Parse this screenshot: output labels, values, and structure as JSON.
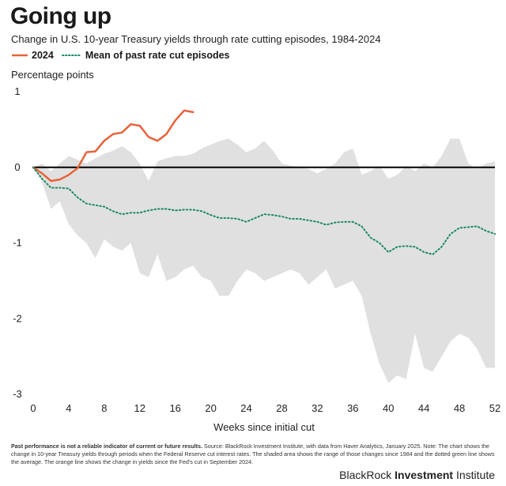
{
  "header": {
    "title": "Going up",
    "subtitle": "Change in U.S. 10-year Treasury yields through rate cutting episodes, 1984-2024"
  },
  "legend": {
    "series_2024": "2024",
    "series_mean": "Mean of past rate cut episodes"
  },
  "footer": {
    "disclaimer": "Past performance is not a reliable indicator of current or future results.",
    "source": "Source: BlackRock Investment Institute, with data from Haver Analytics, January 2025. Note: The chart shows the change in 10-year Treasury yields through periods when the Federal Reserve cut interest rates. The shaded area shows the range of those changes since 1984 and the dotted green line shows the average. The orange line shows the change in yields since the Fed's cut in September 2024.",
    "brand_prefix": "BlackRock",
    "brand_bold": "Investment",
    "brand_suffix": "Institute"
  },
  "colors": {
    "line_2024": "#e8623a",
    "mean": "#1a8a6a",
    "range": "#e0e0e0",
    "zero": "#000000"
  },
  "chart_data": {
    "type": "line",
    "title": "Going up",
    "ylabel": "Percentage points",
    "xlabel": "Weeks since initial cut",
    "xlim": [
      0,
      52
    ],
    "ylim": [
      -3,
      1
    ],
    "xticks": [
      0,
      4,
      8,
      12,
      16,
      20,
      24,
      28,
      32,
      36,
      40,
      44,
      48,
      52
    ],
    "yticks": [
      1,
      0,
      -1,
      -2,
      -3
    ],
    "series": [
      {
        "name": "2024",
        "x": [
          0,
          1,
          2,
          3,
          4,
          5,
          6,
          7,
          8,
          9,
          10,
          11,
          12,
          13,
          14,
          15,
          16,
          17,
          18
        ],
        "values": [
          0,
          -0.08,
          -0.18,
          -0.16,
          -0.1,
          -0.01,
          0.2,
          0.21,
          0.35,
          0.44,
          0.46,
          0.57,
          0.55,
          0.4,
          0.35,
          0.44,
          0.62,
          0.75,
          0.73
        ]
      },
      {
        "name": "Mean of past rate cut episodes",
        "x": [
          0,
          1,
          2,
          3,
          4,
          5,
          6,
          7,
          8,
          9,
          10,
          11,
          12,
          13,
          14,
          15,
          16,
          17,
          18,
          19,
          20,
          21,
          22,
          23,
          24,
          25,
          26,
          27,
          28,
          29,
          30,
          31,
          32,
          33,
          34,
          35,
          36,
          37,
          38,
          39,
          40,
          41,
          42,
          43,
          44,
          45,
          46,
          47,
          48,
          49,
          50,
          51,
          52
        ],
        "values": [
          0,
          -0.15,
          -0.27,
          -0.27,
          -0.28,
          -0.4,
          -0.48,
          -0.5,
          -0.52,
          -0.58,
          -0.62,
          -0.6,
          -0.6,
          -0.57,
          -0.55,
          -0.55,
          -0.57,
          -0.56,
          -0.56,
          -0.58,
          -0.63,
          -0.67,
          -0.67,
          -0.68,
          -0.72,
          -0.67,
          -0.62,
          -0.63,
          -0.65,
          -0.68,
          -0.68,
          -0.7,
          -0.72,
          -0.76,
          -0.73,
          -0.72,
          -0.72,
          -0.78,
          -0.93,
          -1.0,
          -1.12,
          -1.05,
          -1.04,
          -1.05,
          -1.12,
          -1.15,
          -1.05,
          -0.88,
          -0.8,
          -0.79,
          -0.78,
          -0.84,
          -0.88
        ]
      }
    ],
    "range": {
      "name": "Range of past episodes",
      "x": [
        0,
        1,
        2,
        3,
        4,
        5,
        6,
        7,
        8,
        9,
        10,
        11,
        12,
        13,
        14,
        15,
        16,
        17,
        18,
        19,
        20,
        21,
        22,
        23,
        24,
        25,
        26,
        27,
        28,
        29,
        30,
        31,
        32,
        33,
        34,
        35,
        36,
        37,
        38,
        39,
        40,
        41,
        42,
        43,
        44,
        45,
        46,
        47,
        48,
        49,
        50,
        51,
        52
      ],
      "upper": [
        0,
        0.05,
        -0.05,
        0.05,
        0.15,
        0.1,
        0.05,
        0.12,
        0.18,
        0.22,
        0.28,
        0.2,
        0.05,
        -0.18,
        0.08,
        0.12,
        0.15,
        0.15,
        0.18,
        0.25,
        0.3,
        0.35,
        0.38,
        0.3,
        0.2,
        0.25,
        0.35,
        0.22,
        0.05,
        0.02,
        0.0,
        -0.02,
        -0.08,
        -0.02,
        0.05,
        0.2,
        0.25,
        -0.1,
        -0.05,
        0.02,
        -0.15,
        -0.1,
        0.02,
        -0.05,
        0.05,
        0.0,
        0.15,
        0.38,
        0.38,
        0.05,
        -0.02,
        0.05,
        0.08
      ],
      "lower": [
        0,
        -0.2,
        -0.55,
        -0.45,
        -0.75,
        -0.9,
        -1.0,
        -1.2,
        -0.95,
        -1.05,
        -1.1,
        -1.0,
        -1.4,
        -1.45,
        -1.15,
        -1.5,
        -1.45,
        -1.35,
        -1.3,
        -1.45,
        -1.5,
        -1.7,
        -1.7,
        -1.5,
        -1.35,
        -1.4,
        -1.5,
        -1.45,
        -1.4,
        -1.35,
        -1.4,
        -1.55,
        -1.45,
        -1.35,
        -1.6,
        -1.55,
        -1.5,
        -1.7,
        -2.2,
        -2.6,
        -2.85,
        -2.75,
        -2.8,
        -2.2,
        -2.65,
        -2.7,
        -2.5,
        -2.3,
        -2.2,
        -2.25,
        -2.4,
        -2.65,
        -2.65
      ]
    }
  }
}
